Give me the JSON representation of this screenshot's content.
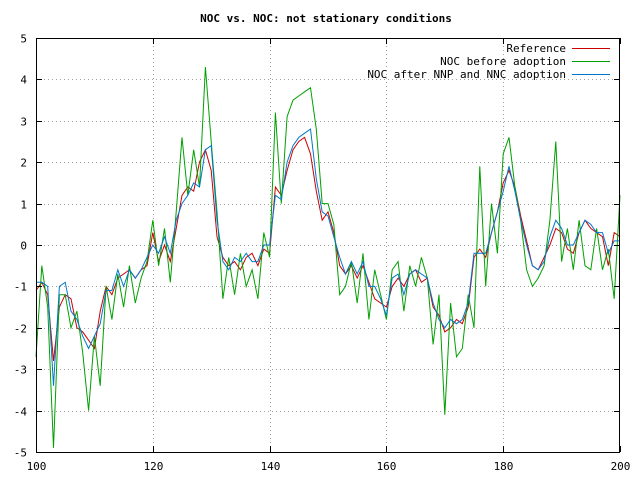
{
  "chart_data": {
    "type": "line",
    "title": "NOC vs. NOC: not stationary conditions",
    "xlim": [
      100,
      200
    ],
    "ylim": [
      -5,
      5
    ],
    "xticks": [
      100,
      120,
      140,
      160,
      180,
      200
    ],
    "yticks": [
      -5,
      -4,
      -3,
      -2,
      -1,
      0,
      1,
      2,
      3,
      4,
      5
    ],
    "grid": true,
    "legend_position": "top-right",
    "xlabel": "",
    "ylabel": "",
    "x": [
      100,
      101,
      102,
      103,
      104,
      105,
      106,
      107,
      108,
      109,
      110,
      111,
      112,
      113,
      114,
      115,
      116,
      117,
      118,
      119,
      120,
      121,
      122,
      123,
      124,
      125,
      126,
      127,
      128,
      129,
      130,
      131,
      132,
      133,
      134,
      135,
      136,
      137,
      138,
      139,
      140,
      141,
      142,
      143,
      144,
      145,
      146,
      147,
      148,
      149,
      150,
      151,
      152,
      153,
      154,
      155,
      156,
      157,
      158,
      159,
      160,
      161,
      162,
      163,
      164,
      165,
      166,
      167,
      168,
      169,
      170,
      171,
      172,
      173,
      174,
      175,
      176,
      177,
      178,
      179,
      180,
      181,
      182,
      183,
      184,
      185,
      186,
      187,
      188,
      189,
      190,
      191,
      192,
      193,
      194,
      195,
      196,
      197,
      198,
      199,
      200
    ],
    "series": [
      {
        "name": "Reference",
        "color": "#cc0000",
        "values": [
          -1.1,
          -0.9,
          -1.2,
          -2.8,
          -1.5,
          -1.2,
          -1.3,
          -2.0,
          -2.1,
          -2.3,
          -2.5,
          -1.6,
          -1.0,
          -1.2,
          -0.8,
          -0.7,
          -0.6,
          -0.8,
          -0.6,
          -0.5,
          0.3,
          -0.4,
          0.0,
          -0.4,
          0.4,
          1.2,
          1.4,
          1.3,
          2.0,
          2.3,
          1.8,
          0.2,
          -0.3,
          -0.5,
          -0.4,
          -0.6,
          -0.3,
          -0.2,
          -0.5,
          -0.1,
          -0.2,
          1.4,
          1.2,
          1.8,
          2.3,
          2.5,
          2.6,
          2.2,
          1.3,
          0.6,
          0.8,
          0.3,
          -0.5,
          -0.7,
          -0.5,
          -0.8,
          -0.5,
          -0.9,
          -1.3,
          -1.4,
          -1.5,
          -1.0,
          -0.8,
          -1.0,
          -0.7,
          -0.6,
          -0.9,
          -0.8,
          -1.5,
          -1.7,
          -2.1,
          -2.0,
          -1.8,
          -1.9,
          -1.5,
          -0.3,
          -0.1,
          -0.3,
          0.3,
          0.8,
          1.5,
          1.8,
          1.4,
          0.7,
          0.1,
          -0.5,
          -0.6,
          -0.3,
          0.0,
          0.4,
          0.3,
          -0.1,
          -0.2,
          0.3,
          0.6,
          0.4,
          0.3,
          0.2,
          -0.5,
          0.3,
          0.2
        ]
      },
      {
        "name": "NOC before adoption",
        "color": "#00a000",
        "values": [
          -2.7,
          -0.5,
          -1.5,
          -4.9,
          -1.2,
          -1.2,
          -2.0,
          -1.6,
          -2.6,
          -4.0,
          -2.2,
          -3.4,
          -1.0,
          -1.8,
          -0.7,
          -1.5,
          -0.5,
          -1.4,
          -0.8,
          -0.4,
          0.6,
          -0.5,
          0.4,
          -0.9,
          0.8,
          2.6,
          1.2,
          2.3,
          1.4,
          4.3,
          2.5,
          0.8,
          -1.3,
          -0.3,
          -1.2,
          -0.2,
          -1.0,
          -0.6,
          -1.3,
          0.3,
          -0.3,
          3.2,
          1.0,
          3.1,
          3.5,
          3.6,
          3.7,
          3.8,
          2.8,
          1.0,
          1.0,
          0.5,
          -1.2,
          -1.0,
          -0.4,
          -1.4,
          -0.2,
          -1.8,
          -0.6,
          -1.2,
          -1.8,
          -0.6,
          -0.4,
          -1.6,
          -0.5,
          -1.0,
          -0.3,
          -0.8,
          -2.4,
          -1.2,
          -4.1,
          -1.4,
          -2.7,
          -2.5,
          -1.2,
          -2.0,
          1.9,
          -1.0,
          1.0,
          -0.2,
          2.2,
          2.6,
          1.4,
          0.6,
          -0.6,
          -1.0,
          -0.8,
          -0.5,
          0.6,
          2.5,
          -0.4,
          0.4,
          -0.6,
          0.6,
          -0.5,
          -0.6,
          0.4,
          -0.6,
          -0.1,
          -1.3,
          1.2
        ]
      },
      {
        "name": "NOC after NNP and NNC adoption",
        "color": "#0077cc",
        "values": [
          -0.9,
          -0.9,
          -1.0,
          -3.4,
          -1.0,
          -0.9,
          -1.6,
          -1.8,
          -2.2,
          -2.5,
          -2.2,
          -1.9,
          -1.1,
          -1.1,
          -0.6,
          -1.0,
          -0.6,
          -0.8,
          -0.6,
          -0.3,
          0.0,
          -0.2,
          0.2,
          -0.2,
          0.6,
          1.0,
          1.2,
          1.5,
          1.4,
          2.3,
          2.4,
          0.6,
          -0.4,
          -0.6,
          -0.3,
          -0.4,
          -0.2,
          -0.4,
          -0.4,
          0.0,
          0.0,
          1.2,
          1.1,
          2.0,
          2.4,
          2.6,
          2.7,
          2.8,
          1.6,
          0.8,
          0.7,
          0.2,
          -0.3,
          -0.7,
          -0.4,
          -0.7,
          -0.4,
          -1.0,
          -1.0,
          -1.3,
          -1.7,
          -0.8,
          -0.7,
          -1.2,
          -0.7,
          -0.6,
          -0.7,
          -0.8,
          -1.4,
          -1.8,
          -2.0,
          -1.8,
          -1.9,
          -1.8,
          -1.4,
          -0.2,
          -0.2,
          -0.2,
          0.3,
          0.8,
          1.3,
          1.9,
          1.3,
          0.6,
          0.0,
          -0.5,
          -0.6,
          -0.4,
          0.2,
          0.6,
          0.4,
          0.0,
          0.0,
          0.3,
          0.6,
          0.5,
          0.3,
          0.3,
          -0.2,
          0.1,
          0.1
        ]
      }
    ]
  }
}
